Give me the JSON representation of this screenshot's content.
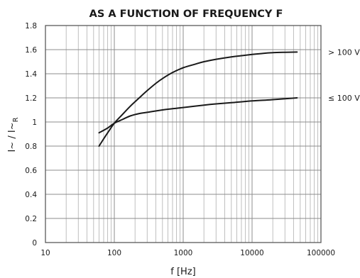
{
  "chart_data": {
    "type": "line",
    "title": "AS A FUNCTION OF FREQUENCY F",
    "xlabel": "f [Hz]",
    "ylabel": "I~ / I~R",
    "ylabel_parts": {
      "main": "I~ / I~",
      "sub": "R"
    },
    "xscale": "log",
    "xlim": [
      10,
      100000
    ],
    "ylim": [
      0,
      1.8
    ],
    "x_ticks": [
      10,
      100,
      1000,
      10000,
      100000
    ],
    "x_tick_labels": [
      "10",
      "100",
      "1000",
      "10000",
      "100000"
    ],
    "y_ticks": [
      0,
      0.2,
      0.4,
      0.6,
      0.8,
      1,
      1.2,
      1.4,
      1.6,
      1.8
    ],
    "y_tick_labels": [
      "0",
      "0.2",
      "0.4",
      "0.6",
      "0.8",
      "1",
      "1.2",
      "1.4",
      "1.6",
      "1.8"
    ],
    "grid": true,
    "series": [
      {
        "name": "> 100 V",
        "x": [
          60,
          70,
          80,
          100,
          130,
          170,
          230,
          300,
          400,
          500,
          700,
          1000,
          1500,
          2000,
          3000,
          5000,
          7000,
          10000,
          15000,
          20000,
          30000,
          45000
        ],
        "y": [
          0.8,
          0.86,
          0.91,
          0.99,
          1.06,
          1.13,
          1.2,
          1.26,
          1.32,
          1.36,
          1.41,
          1.45,
          1.48,
          1.5,
          1.52,
          1.54,
          1.55,
          1.56,
          1.57,
          1.575,
          1.578,
          1.58
        ]
      },
      {
        "name": "≤ 100 V",
        "x": [
          60,
          80,
          100,
          130,
          170,
          230,
          300,
          500,
          700,
          1000,
          2000,
          3000,
          5000,
          10000,
          20000,
          45000
        ],
        "y": [
          0.91,
          0.95,
          0.99,
          1.02,
          1.05,
          1.07,
          1.08,
          1.1,
          1.11,
          1.12,
          1.14,
          1.15,
          1.16,
          1.175,
          1.185,
          1.2
        ]
      }
    ]
  }
}
